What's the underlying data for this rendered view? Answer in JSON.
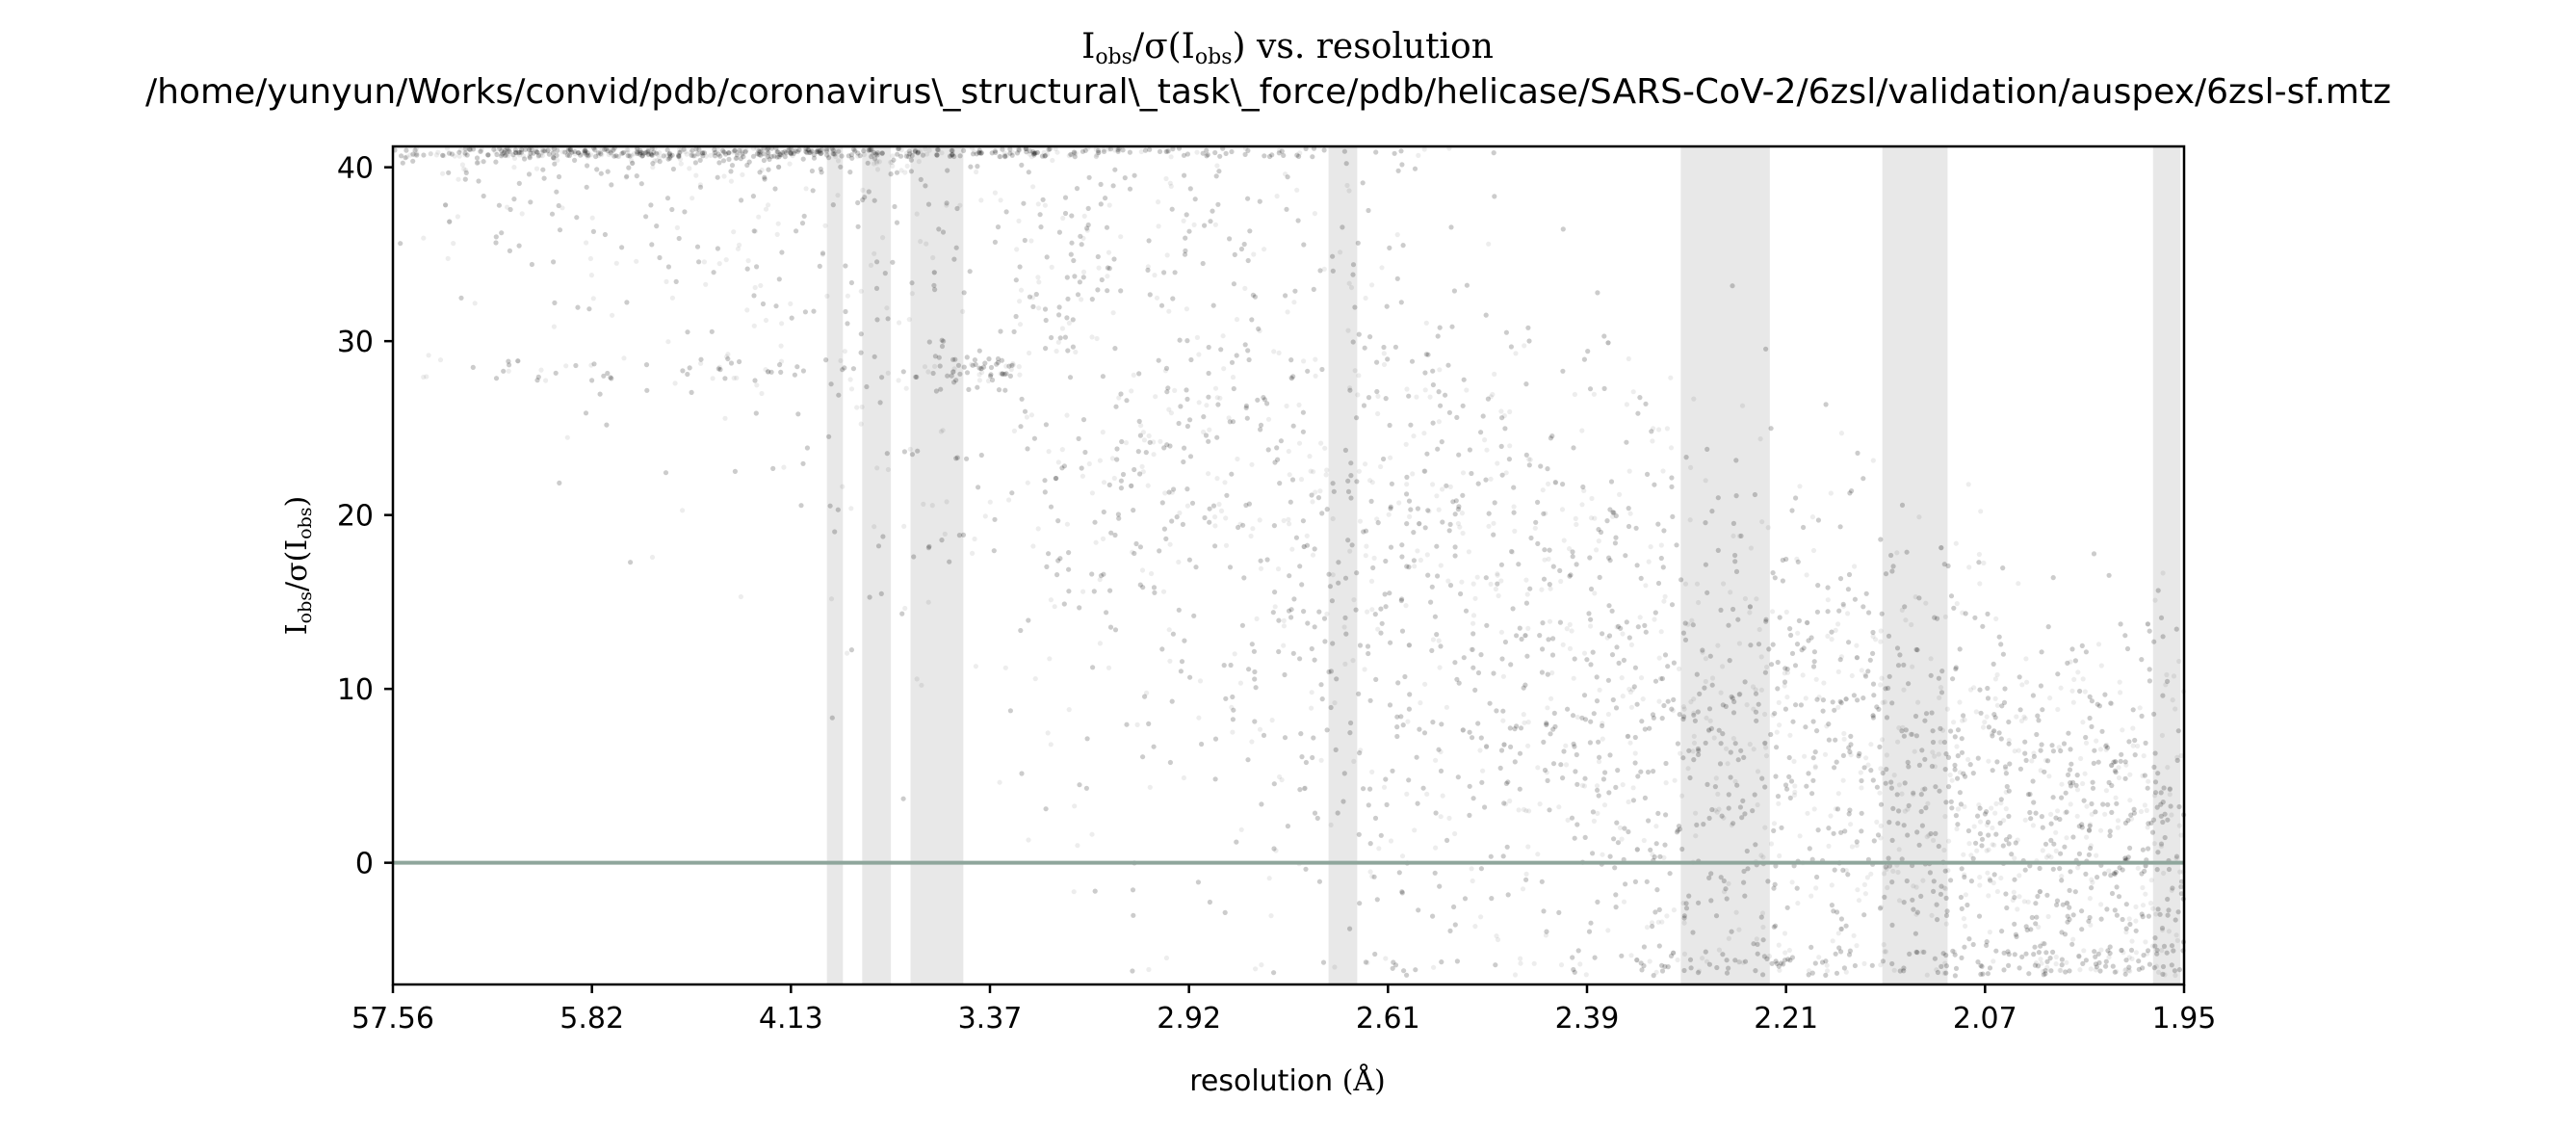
{
  "chart_data": {
    "type": "scatter",
    "title_prefix": "I",
    "title_sub1": "obs",
    "title_mid": "/σ(I",
    "title_sub2": "obs",
    "title_suffix": ") vs. resolution",
    "subtitle": "/home/yunyun/Works/convid/pdb/coronavirus\\_structural\\_task\\_force/pdb/helicase/SARS-CoV-2/6zsl/validation/auspex/6zsl-sf.mtz",
    "xlabel_text": "resolution ",
    "xlabel_unit": "(Å)",
    "ylabel_prefix": "I",
    "ylabel_sub1": "obs",
    "ylabel_mid": "/σ(I",
    "ylabel_sub2": "obs",
    "ylabel_suffix": ")",
    "ylim": [
      -7,
      41.2
    ],
    "yticks": [
      0,
      10,
      20,
      30,
      40
    ],
    "x_scale": "1/d^2",
    "xlim": [
      57.56,
      1.938
    ],
    "xticks": [
      "57.56",
      "5.82",
      "4.13",
      "3.37",
      "2.92",
      "2.61",
      "2.39",
      "2.21",
      "2.07",
      "1.95"
    ],
    "ice_rings": [
      {
        "from": 3.93,
        "to": 3.86
      },
      {
        "from": 3.78,
        "to": 3.67
      },
      {
        "from": 3.6,
        "to": 3.43
      },
      {
        "from": 2.68,
        "to": 2.64
      },
      {
        "from": 2.285,
        "to": 2.21
      },
      {
        "from": 2.125,
        "to": 2.08
      },
      {
        "from": 1.955,
        "to": 1.94
      }
    ],
    "zero_line": 0,
    "grid": false,
    "colors": {
      "points": "#000000",
      "ice_ring": "#e8e8e8",
      "zero_line": "#8fa69c",
      "axes": "#000000"
    }
  }
}
